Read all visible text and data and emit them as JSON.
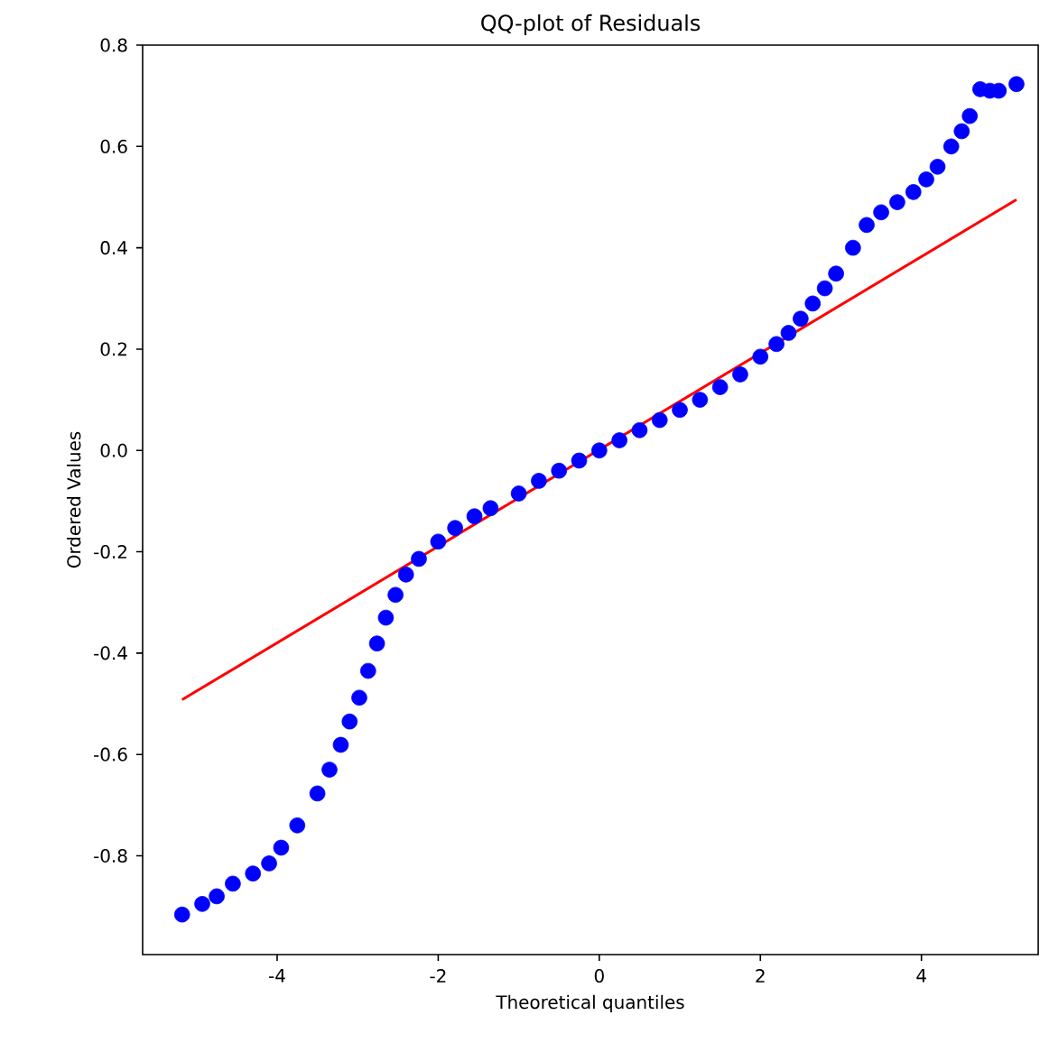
{
  "chart_data": {
    "type": "scatter",
    "title": "QQ-plot of Residuals",
    "xlabel": "Theoretical quantiles",
    "ylabel": "Ordered Values",
    "xlim": [
      -5.67,
      5.45
    ],
    "ylim": [
      -0.995,
      0.8
    ],
    "xticks": [
      -4,
      -2,
      0,
      2,
      4
    ],
    "yticks": [
      -0.8,
      -0.6,
      -0.4,
      -0.2,
      {
        "value": 0,
        "label": "0.0"
      },
      0.2,
      0.4,
      0.6,
      0.8
    ],
    "marker": "circle",
    "grid": false,
    "series": [
      {
        "color": "#0000ff",
        "x": [
          -5.18,
          -4.93,
          -4.75,
          -4.55,
          -4.3,
          -4.1,
          -3.95,
          -3.75,
          -3.5,
          -3.35,
          -3.21,
          -3.1,
          -2.98,
          -2.87,
          -2.76,
          -2.65,
          -2.53,
          -2.4,
          -2.24,
          -2.0,
          -1.79,
          -1.55,
          -1.35,
          -1.0,
          -0.75,
          -0.5,
          -0.25,
          0.0,
          0.25,
          0.5,
          0.75,
          1.0,
          1.25,
          1.5,
          1.75,
          2.0,
          2.2,
          2.35,
          2.5,
          2.65,
          2.8,
          2.94,
          3.15,
          3.32,
          3.5,
          3.7,
          3.9,
          4.06,
          4.2,
          4.37,
          4.5,
          4.6,
          4.73,
          4.85,
          4.96,
          5.18
        ],
        "values": [
          -0.916,
          -0.895,
          -0.88,
          -0.855,
          -0.835,
          -0.815,
          -0.784,
          -0.74,
          -0.677,
          -0.63,
          -0.581,
          -0.535,
          -0.488,
          -0.435,
          -0.381,
          -0.33,
          -0.285,
          -0.245,
          -0.214,
          -0.18,
          -0.153,
          -0.13,
          -0.114,
          -0.085,
          -0.06,
          -0.04,
          -0.02,
          0.0,
          0.02,
          0.04,
          0.06,
          0.08,
          0.1,
          0.125,
          0.15,
          0.185,
          0.21,
          0.232,
          0.26,
          0.29,
          0.32,
          0.349,
          0.4,
          0.445,
          0.47,
          0.49,
          0.51,
          0.535,
          0.56,
          0.6,
          0.63,
          0.66,
          0.713,
          0.71,
          0.71,
          0.723
        ]
      },
      {
        "type": "line",
        "color": "#ff0000",
        "marker": "none",
        "x": [
          -5.18,
          5.18
        ],
        "values": [
          -0.492,
          0.495
        ]
      }
    ]
  }
}
